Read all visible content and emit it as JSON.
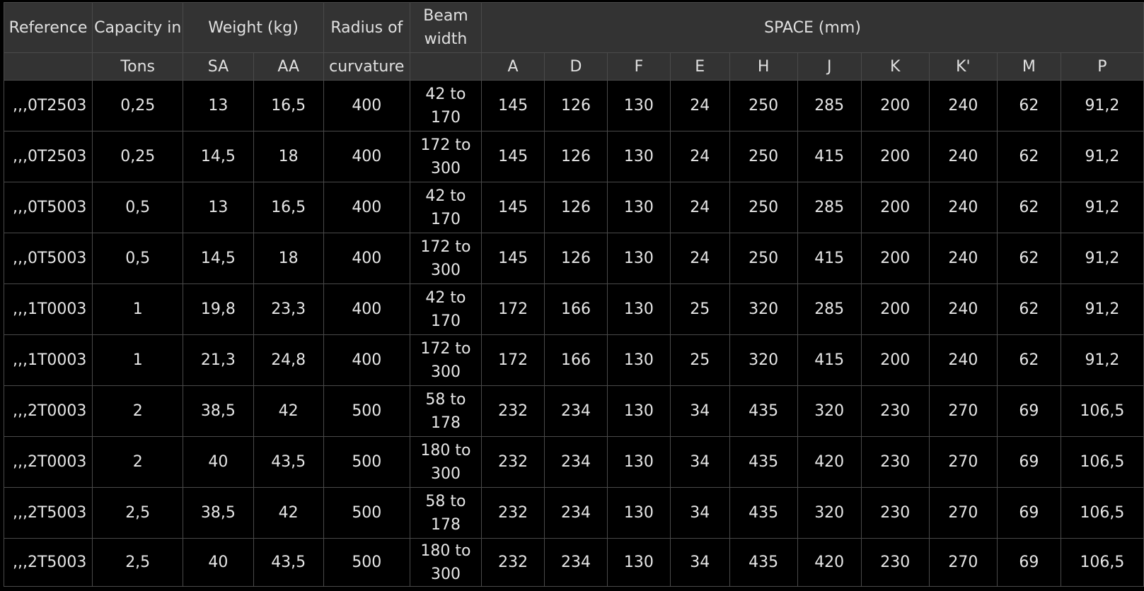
{
  "header": {
    "reference": "Reference",
    "capacity_top": "Capacity in",
    "capacity_bottom": "Tons",
    "weight": "Weight (kg)",
    "weight_sa": "SA",
    "weight_aa": "AA",
    "radius_top": "Radius of",
    "radius_bottom": "curvature",
    "beam_width": "Beam width",
    "space": "SPACE (mm)",
    "space_columns": [
      "A",
      "D",
      "F",
      "E",
      "H",
      "J",
      "K",
      "K'",
      "M",
      "P"
    ]
  },
  "rows": [
    {
      "ref": ",,,0T2503",
      "capacity": "0,25",
      "sa": "13",
      "aa": "16,5",
      "radius": "400",
      "beam": "42 to 170",
      "space": [
        "145",
        "126",
        "130",
        "24",
        "250",
        "285",
        "200",
        "240",
        "62",
        "91,2"
      ]
    },
    {
      "ref": ",,,0T2503",
      "capacity": "0,25",
      "sa": "14,5",
      "aa": "18",
      "radius": "400",
      "beam": "172 to 300",
      "space": [
        "145",
        "126",
        "130",
        "24",
        "250",
        "415",
        "200",
        "240",
        "62",
        "91,2"
      ]
    },
    {
      "ref": ",,,0T5003",
      "capacity": "0,5",
      "sa": "13",
      "aa": "16,5",
      "radius": "400",
      "beam": "42 to 170",
      "space": [
        "145",
        "126",
        "130",
        "24",
        "250",
        "285",
        "200",
        "240",
        "62",
        "91,2"
      ]
    },
    {
      "ref": ",,,0T5003",
      "capacity": "0,5",
      "sa": "14,5",
      "aa": "18",
      "radius": "400",
      "beam": "172 to 300",
      "space": [
        "145",
        "126",
        "130",
        "24",
        "250",
        "415",
        "200",
        "240",
        "62",
        "91,2"
      ]
    },
    {
      "ref": ",,,1T0003",
      "capacity": "1",
      "sa": "19,8",
      "aa": "23,3",
      "radius": "400",
      "beam": "42 to 170",
      "space": [
        "172",
        "166",
        "130",
        "25",
        "320",
        "285",
        "200",
        "240",
        "62",
        "91,2"
      ]
    },
    {
      "ref": ",,,1T0003",
      "capacity": "1",
      "sa": "21,3",
      "aa": "24,8",
      "radius": "400",
      "beam": "172 to 300",
      "space": [
        "172",
        "166",
        "130",
        "25",
        "320",
        "415",
        "200",
        "240",
        "62",
        "91,2"
      ]
    },
    {
      "ref": ",,,2T0003",
      "capacity": "2",
      "sa": "38,5",
      "aa": "42",
      "radius": "500",
      "beam": "58 to 178",
      "space": [
        "232",
        "234",
        "130",
        "34",
        "435",
        "320",
        "230",
        "270",
        "69",
        "106,5"
      ]
    },
    {
      "ref": ",,,2T0003",
      "capacity": "2",
      "sa": "40",
      "aa": "43,5",
      "radius": "500",
      "beam": "180 to 300",
      "space": [
        "232",
        "234",
        "130",
        "34",
        "435",
        "420",
        "230",
        "270",
        "69",
        "106,5"
      ]
    },
    {
      "ref": ",,,2T5003",
      "capacity": "2,5",
      "sa": "38,5",
      "aa": "42",
      "radius": "500",
      "beam": "58 to 178",
      "space": [
        "232",
        "234",
        "130",
        "34",
        "435",
        "320",
        "230",
        "270",
        "69",
        "106,5"
      ]
    },
    {
      "ref": ",,,2T5003",
      "capacity": "2,5",
      "sa": "40",
      "aa": "43,5",
      "radius": "500",
      "beam": "180 to 300",
      "space": [
        "232",
        "234",
        "130",
        "34",
        "435",
        "420",
        "230",
        "270",
        "69",
        "106,5"
      ]
    }
  ]
}
